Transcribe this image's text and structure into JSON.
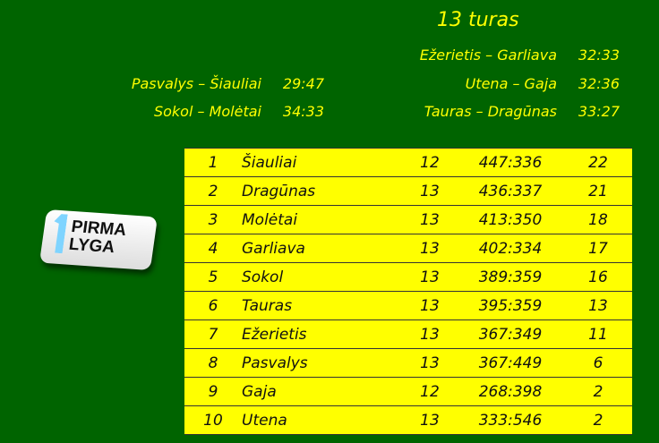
{
  "round_title": "13 turas",
  "results_left": [
    {
      "match": "Pasvalys – Šiauliai",
      "score": "29:47"
    },
    {
      "match": "Sokol – Molėtai",
      "score": "34:33"
    }
  ],
  "results_right": [
    {
      "match": "Ežerietis – Garliava",
      "score": "32:33"
    },
    {
      "match": "Utena – Gaja",
      "score": "32:36"
    },
    {
      "match": "Tauras – Dragūnas",
      "score": "33:27"
    }
  ],
  "logo": {
    "line1": "PIRMA",
    "line2": "LYGA"
  },
  "standings": [
    {
      "pos": "1",
      "team": "Šiauliai",
      "games": "12",
      "goals": "447:336",
      "points": "22"
    },
    {
      "pos": "2",
      "team": "Dragūnas",
      "games": "13",
      "goals": "436:337",
      "points": "21"
    },
    {
      "pos": "3",
      "team": "Molėtai",
      "games": "13",
      "goals": "413:350",
      "points": "18"
    },
    {
      "pos": "4",
      "team": "Garliava",
      "games": "13",
      "goals": "402:334",
      "points": "17"
    },
    {
      "pos": "5",
      "team": "Sokol",
      "games": "13",
      "goals": "389:359",
      "points": "16"
    },
    {
      "pos": "6",
      "team": "Tauras",
      "games": "13",
      "goals": "395:359",
      "points": "13"
    },
    {
      "pos": "7",
      "team": "Ežerietis",
      "games": "13",
      "goals": "367:349",
      "points": "11"
    },
    {
      "pos": "8",
      "team": "Pasvalys",
      "games": "13",
      "goals": "367:449",
      "points": "6"
    },
    {
      "pos": "9",
      "team": "Gaja",
      "games": "12",
      "goals": "268:398",
      "points": "2"
    },
    {
      "pos": "10",
      "team": "Utena",
      "games": "13",
      "goals": "333:546",
      "points": "2"
    }
  ]
}
